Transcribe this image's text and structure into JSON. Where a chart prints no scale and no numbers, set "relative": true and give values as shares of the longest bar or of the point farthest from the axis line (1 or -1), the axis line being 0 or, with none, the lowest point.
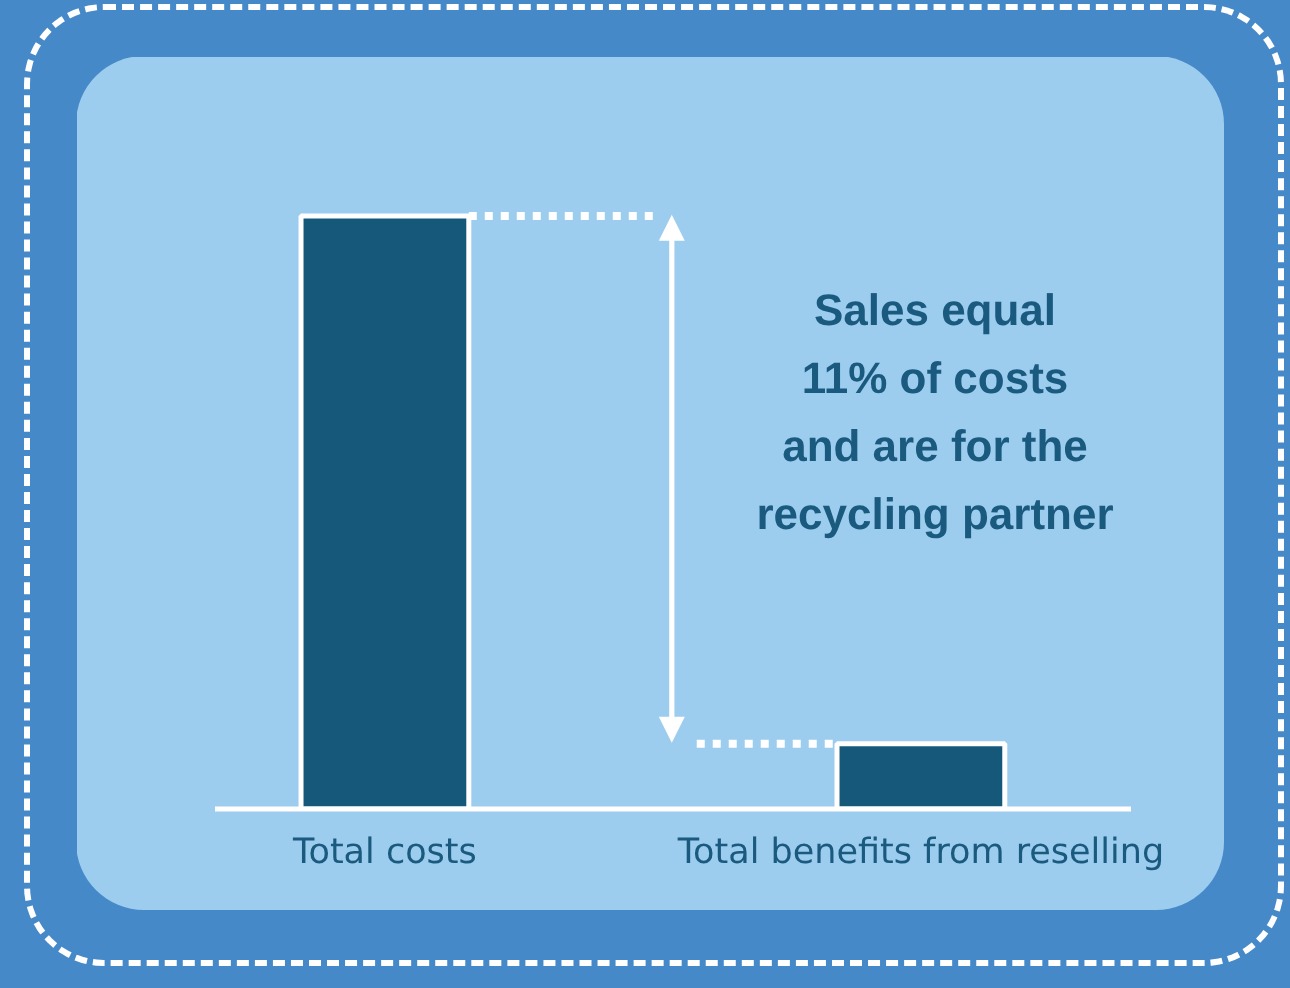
{
  "chart_data": {
    "type": "bar",
    "categories": [
      "Total costs",
      "Total benefits from reselling"
    ],
    "values": [
      1,
      0.11
    ],
    "relative": true,
    "color": "#16587a",
    "ref_lines": [
      {
        "axis": "y",
        "value": 1,
        "color": "#ffffff",
        "line_style": "dotted"
      },
      {
        "axis": "y",
        "value": 0.11,
        "color": "#ffffff",
        "line_style": "dotted"
      }
    ],
    "annotations": [
      "Sales equal\n11% of costs\nand are for the\nrecycling partner"
    ]
  }
}
